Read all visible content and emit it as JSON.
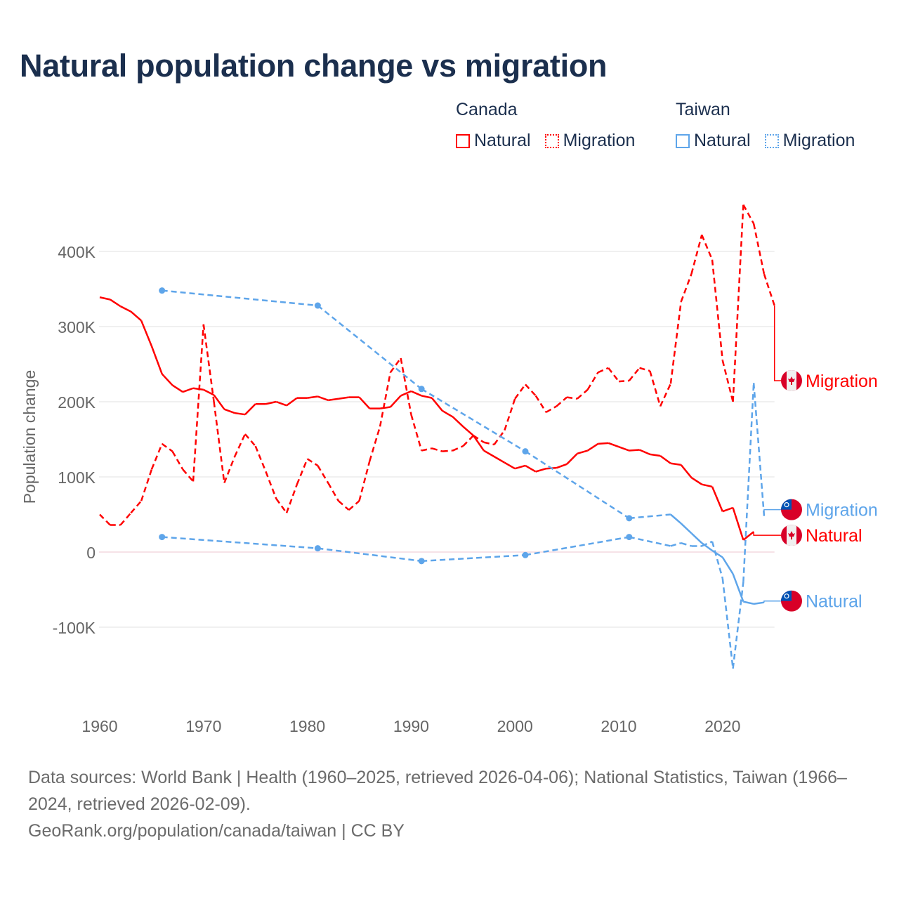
{
  "title": "Natural population change vs migration",
  "legend": {
    "groups": [
      {
        "country": "Canada",
        "items": [
          {
            "label": "Natural",
            "style": "solid"
          },
          {
            "label": "Migration",
            "style": "dotted"
          }
        ],
        "color": "#ff0000"
      },
      {
        "country": "Taiwan",
        "items": [
          {
            "label": "Natural",
            "style": "solid"
          },
          {
            "label": "Migration",
            "style": "dotted"
          }
        ],
        "color": "#5ea5ea"
      }
    ]
  },
  "footer": {
    "line1": "Data sources: World Bank | Health (1960–2025, retrieved 2026-04-06); National Statistics, Taiwan (1966–2024, retrieved 2026-02-09).",
    "line2": "GeoRank.org/population/canada/taiwan | CC BY"
  },
  "chart_data": {
    "type": "line",
    "title": "Natural population change vs migration",
    "xlabel": "",
    "ylabel": "Population change",
    "xlim": [
      1960,
      2025
    ],
    "ylim": [
      -200000,
      480000
    ],
    "x_ticks": [
      1960,
      1970,
      1980,
      1990,
      2000,
      2010,
      2020
    ],
    "x_tick_labels": [
      "1960",
      "1970",
      "1980",
      "1990",
      "2000",
      "2010",
      "2020"
    ],
    "y_ticks": [
      -100000,
      0,
      100000,
      200000,
      300000,
      400000
    ],
    "y_tick_labels": [
      "-100K",
      "0",
      "100K",
      "200K",
      "300K",
      "400K"
    ],
    "grid": true,
    "legend_position": "top-right",
    "series": [
      {
        "name": "Canada Natural",
        "country": "Canada",
        "kind": "Natural",
        "label": "Natural",
        "color": "#ff0000",
        "dashed": false,
        "flag": "canada-flag",
        "x": [
          1960,
          1961,
          1962,
          1963,
          1964,
          1965,
          1966,
          1967,
          1968,
          1969,
          1970,
          1971,
          1972,
          1973,
          1974,
          1975,
          1976,
          1977,
          1978,
          1979,
          1980,
          1981,
          1982,
          1983,
          1984,
          1985,
          1986,
          1987,
          1988,
          1989,
          1990,
          1991,
          1992,
          1993,
          1994,
          1995,
          1996,
          1997,
          1998,
          1999,
          2000,
          2001,
          2002,
          2003,
          2004,
          2005,
          2006,
          2007,
          2008,
          2009,
          2010,
          2011,
          2012,
          2013,
          2014,
          2015,
          2016,
          2017,
          2018,
          2019,
          2020,
          2021,
          2022,
          2023
        ],
        "y": [
          339000,
          336000,
          327000,
          320000,
          308000,
          274000,
          237000,
          222000,
          213000,
          218000,
          216000,
          209000,
          190000,
          185000,
          183000,
          197000,
          197000,
          200000,
          195000,
          205000,
          205000,
          207000,
          202000,
          204000,
          206000,
          206000,
          191000,
          191000,
          193000,
          208000,
          214000,
          208000,
          205000,
          188000,
          180000,
          167000,
          155000,
          135000,
          127000,
          119000,
          111000,
          115000,
          107000,
          111000,
          112000,
          117000,
          131000,
          135000,
          144000,
          145000,
          140000,
          135000,
          136000,
          130000,
          128000,
          118000,
          116000,
          99000,
          90000,
          87000,
          54000,
          59000,
          16000,
          27000
        ]
      },
      {
        "name": "Canada Migration",
        "country": "Canada",
        "kind": "Migration",
        "label": "Migration",
        "color": "#ff0000",
        "dashed": true,
        "flag": "canada-flag",
        "x": [
          1960,
          1961,
          1962,
          1963,
          1964,
          1965,
          1966,
          1967,
          1968,
          1969,
          1970,
          1971,
          1972,
          1973,
          1974,
          1975,
          1976,
          1977,
          1978,
          1979,
          1980,
          1981,
          1982,
          1983,
          1984,
          1985,
          1986,
          1987,
          1988,
          1989,
          1990,
          1991,
          1992,
          1993,
          1994,
          1995,
          1996,
          1997,
          1998,
          1999,
          2000,
          2001,
          2002,
          2003,
          2004,
          2005,
          2006,
          2007,
          2008,
          2009,
          2010,
          2011,
          2012,
          2013,
          2014,
          2015,
          2016,
          2017,
          2018,
          2019,
          2020,
          2021,
          2022,
          2023,
          2024,
          2025
        ],
        "y": [
          50000,
          36000,
          36000,
          52000,
          68000,
          110000,
          144000,
          134000,
          110000,
          94000,
          303000,
          200000,
          92000,
          127000,
          157000,
          141000,
          107000,
          71000,
          52000,
          90000,
          124000,
          115000,
          92000,
          68000,
          56000,
          68000,
          121000,
          167000,
          239000,
          258000,
          183000,
          135000,
          138000,
          134000,
          135000,
          141000,
          155000,
          146000,
          143000,
          162000,
          204000,
          223000,
          208000,
          186000,
          194000,
          206000,
          204000,
          216000,
          239000,
          245000,
          227000,
          228000,
          245000,
          241000,
          194000,
          224000,
          333000,
          370000,
          422000,
          389000,
          255000,
          200000,
          462000,
          437000,
          370000,
          328000
        ]
      },
      {
        "name": "Taiwan Natural",
        "country": "Taiwan",
        "kind": "Natural",
        "label": "Natural",
        "color": "#5ea5ea",
        "dashed": false,
        "flag": "taiwan-flag",
        "x": [
          1966,
          1981,
          1991,
          2001,
          2011,
          2015,
          2016,
          2017,
          2018,
          2019,
          2020,
          2021,
          2022,
          2023,
          2024
        ],
        "y": [
          348000,
          328000,
          217000,
          134000,
          45000,
          50000,
          38000,
          25000,
          12000,
          2000,
          -7000,
          -29000,
          -66000,
          -69000,
          -67000
        ]
      },
      {
        "name": "Taiwan Migration",
        "country": "Taiwan",
        "kind": "Migration",
        "label": "Migration",
        "color": "#5ea5ea",
        "dashed": true,
        "flag": "taiwan-flag",
        "x": [
          1966,
          1981,
          1991,
          2001,
          2011,
          2015,
          2016,
          2017,
          2018,
          2019,
          2020,
          2021,
          2022,
          2023,
          2024
        ],
        "y": [
          20000,
          5000,
          -12000,
          -4000,
          20000,
          8000,
          12000,
          8000,
          8000,
          14000,
          -35000,
          -155000,
          -40000,
          225000,
          48000
        ]
      }
    ]
  }
}
